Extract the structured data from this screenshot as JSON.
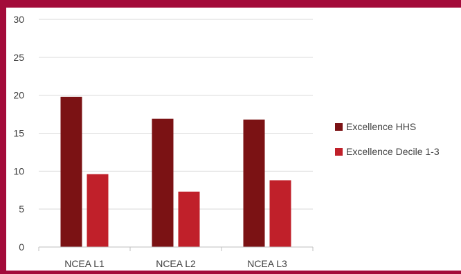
{
  "chart_data": {
    "type": "bar",
    "categories": [
      "NCEA L1",
      "NCEA L2",
      "NCEA L3"
    ],
    "series": [
      {
        "name": "Excellence HHS",
        "values": [
          19.8,
          16.9,
          16.8
        ],
        "color": "#7b1214"
      },
      {
        "name": "Excellence Decile 1-3",
        "values": [
          9.6,
          7.3,
          8.8
        ],
        "color": "#c0202a"
      }
    ],
    "ylim": [
      0,
      30
    ],
    "yticks": [
      0,
      5,
      10,
      15,
      20,
      25,
      30
    ],
    "grid": true,
    "legend": "right",
    "colors": {
      "frame": "#a30b3a",
      "grid": "#d9d9d9",
      "axis": "#bfbfbf",
      "text": "#404040"
    }
  }
}
